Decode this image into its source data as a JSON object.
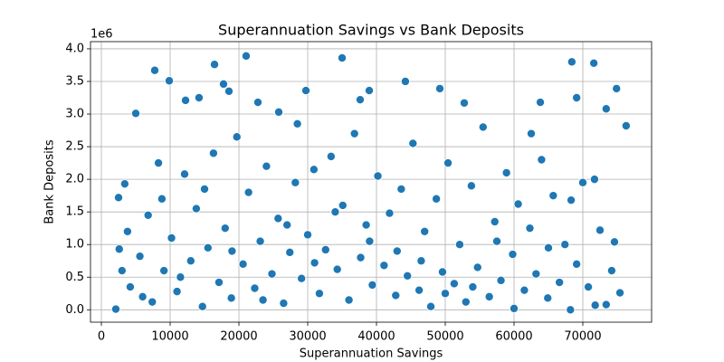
{
  "chart_data": {
    "type": "scatter",
    "title": "Superannuation Savings vs Bank Deposits",
    "x_label": "Superannuation Savings",
    "y_label": "Bank Deposits",
    "y_offset_label": "1e6",
    "color": "#1f77b4",
    "grid": true,
    "xlim": [
      -1580,
      80000
    ],
    "ylim": [
      -0.19,
      4.11
    ],
    "xticks": [
      0,
      10000,
      20000,
      30000,
      40000,
      50000,
      60000,
      70000
    ],
    "yticks": [
      {
        "value": 0,
        "label": "0.0"
      },
      0.5,
      {
        "value": 1,
        "label": "1.0"
      },
      1.5,
      {
        "value": 2,
        "label": "2.0"
      },
      2.5,
      {
        "value": 3,
        "label": "3.0"
      },
      3.5,
      {
        "value": 4,
        "label": "4.0"
      }
    ],
    "x": [
      7760,
      9870,
      16450,
      21050,
      35000,
      44200,
      68400,
      71600,
      74900,
      76300,
      73400,
      69100,
      5000,
      12240,
      14200,
      17760,
      18550,
      22760,
      25790,
      29740,
      37630,
      38950,
      49210,
      52760,
      63820,
      73400,
      75400,
      74200,
      74600,
      71800,
      68200,
      2100,
      2600,
      2500,
      3400,
      62500,
      4200,
      5600,
      6800,
      7400,
      8300,
      9100,
      10200,
      11000,
      12100,
      13000,
      13800,
      14700,
      15500,
      16300,
      17100,
      18000,
      18900,
      19700,
      20600,
      21400,
      22300,
      23100,
      24000,
      24800,
      25700,
      26500,
      27400,
      28200,
      29100,
      30000,
      30900,
      31700,
      32600,
      33400,
      34300,
      35100,
      36000,
      36800,
      37700,
      38500,
      39400,
      40200,
      41100,
      41900,
      42800,
      43600,
      44500,
      45300,
      46200,
      47000,
      47900,
      48700,
      49600,
      50400,
      51300,
      52100,
      53000,
      53800,
      54700,
      55500,
      56400,
      57200,
      58100,
      58900,
      59800,
      60600,
      61500,
      62300,
      63200,
      64000,
      64900,
      65700,
      66600,
      67400,
      68300,
      69100,
      70000,
      70800,
      71700,
      72500,
      3000,
      3800,
      6000,
      8800,
      11500,
      15000,
      19000,
      23500,
      27000,
      31000,
      34000,
      39000,
      43000,
      46500,
      50000,
      54000,
      57500,
      60000,
      65000,
      28500
    ],
    "y": [
      3.67,
      3.51,
      3.76,
      3.89,
      3.86,
      3.5,
      3.8,
      3.78,
      3.39,
      2.82,
      3.08,
      3.25,
      3.01,
      3.21,
      3.25,
      3.46,
      3.35,
      3.18,
      3.03,
      3.36,
      3.22,
      3.36,
      3.39,
      3.17,
      3.18,
      0.08,
      0.26,
      0.6,
      1.04,
      0.07,
      0.0,
      0.01,
      0.93,
      1.72,
      1.93,
      2.7,
      0.35,
      0.82,
      1.45,
      0.12,
      2.25,
      0.6,
      1.1,
      0.28,
      2.08,
      0.75,
      1.55,
      0.05,
      0.95,
      2.4,
      0.42,
      1.25,
      0.18,
      2.65,
      0.7,
      1.8,
      0.33,
      1.05,
      2.2,
      0.55,
      1.4,
      0.1,
      0.88,
      1.95,
      0.48,
      1.15,
      2.15,
      0.25,
      0.92,
      2.35,
      0.62,
      1.6,
      0.15,
      2.7,
      0.8,
      1.3,
      0.38,
      2.05,
      0.68,
      1.48,
      0.22,
      1.85,
      0.52,
      2.55,
      0.3,
      1.2,
      0.05,
      1.7,
      0.58,
      2.25,
      0.4,
      1.0,
      0.12,
      1.9,
      0.65,
      2.8,
      0.2,
      1.35,
      0.45,
      2.1,
      0.85,
      1.62,
      0.3,
      1.25,
      0.55,
      2.3,
      0.18,
      1.75,
      0.42,
      1.0,
      1.68,
      0.7,
      1.95,
      0.35,
      2.0,
      1.22,
      0.6,
      1.2,
      0.2,
      1.7,
      0.5,
      1.85,
      0.9,
      0.15,
      1.3,
      0.72,
      1.5,
      1.05,
      0.9,
      0.75,
      0.25,
      0.35,
      1.05,
      0.02,
      0.95,
      2.85
    ]
  }
}
